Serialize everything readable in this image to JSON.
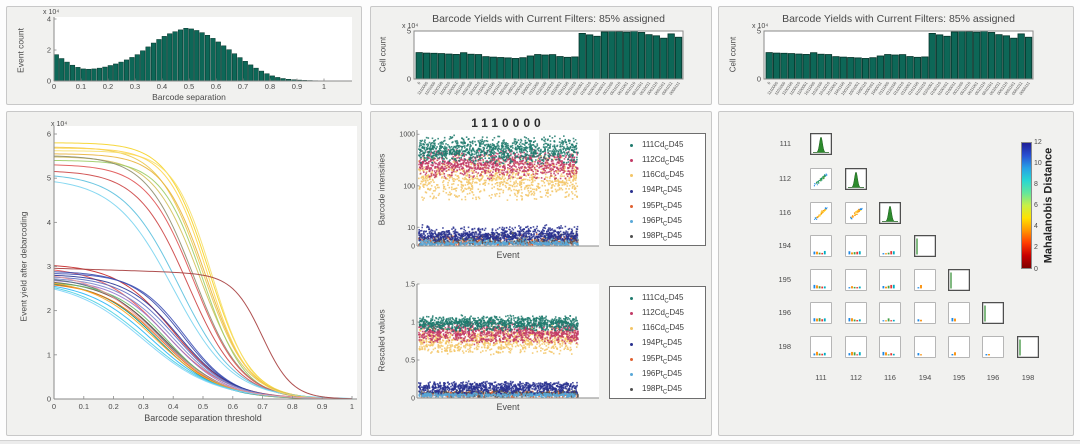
{
  "chart_data": {
    "separation_histogram": {
      "type": "histogram",
      "ylabel": "Event count",
      "xlabel": "Barcode separation",
      "exponent": "x 10⁴",
      "bar_color": "#0d6757",
      "bar_edge": "#05342a",
      "bin_width": 0.02,
      "x_start": 0,
      "xticks": [
        "0",
        "0.1",
        "0.2",
        "0.3",
        "0.4",
        "0.5",
        "0.6",
        "0.7",
        "0.8",
        "0.9",
        "1"
      ],
      "yticks": [
        0,
        2,
        4
      ],
      "ylim": [
        0,
        4
      ],
      "values": [
        1.7,
        1.45,
        1.22,
        1.02,
        0.88,
        0.78,
        0.76,
        0.78,
        0.83,
        0.9,
        1.0,
        1.1,
        1.22,
        1.36,
        1.52,
        1.7,
        1.95,
        2.2,
        2.45,
        2.68,
        2.88,
        3.05,
        3.18,
        3.3,
        3.4,
        3.36,
        3.26,
        3.12,
        2.95,
        2.75,
        2.52,
        2.27,
        2.02,
        1.76,
        1.51,
        1.27,
        1.04,
        0.83,
        0.64,
        0.47,
        0.33,
        0.23,
        0.16,
        0.11,
        0.08,
        0.06,
        0.04,
        0.03,
        0.02,
        0.015,
        0.01,
        0.008,
        0.006
      ]
    },
    "yield_curves": {
      "type": "line",
      "ylabel": "Event yield after debarcoding",
      "xlabel": "Barcode separation threshold",
      "exponent": "x 10⁴",
      "xticks": [
        "0",
        "0.1",
        "0.2",
        "0.3",
        "0.4",
        "0.5",
        "0.6",
        "0.7",
        "0.8",
        "0.9",
        "1"
      ],
      "yticks": [
        0,
        1,
        2,
        3,
        4,
        5,
        6
      ],
      "ylim": [
        0,
        6
      ],
      "curves": [
        {
          "color": "#f5d327",
          "start": 5.8,
          "mid": 0.52,
          "steep": 0.07
        },
        {
          "color": "#ecc94b",
          "start": 5.7,
          "mid": 0.5,
          "steep": 0.075
        },
        {
          "color": "#f7e06e",
          "start": 5.62,
          "mid": 0.53,
          "steep": 0.065
        },
        {
          "color": "#e8b33c",
          "start": 5.55,
          "mid": 0.51,
          "steep": 0.072
        },
        {
          "color": "#d4c05a",
          "start": 5.48,
          "mid": 0.49,
          "steep": 0.078
        },
        {
          "color": "#9ccc65",
          "start": 5.4,
          "mid": 0.5,
          "steep": 0.07
        },
        {
          "color": "#8d8d6e",
          "start": 5.5,
          "mid": 0.47,
          "steep": 0.08
        },
        {
          "color": "#e05252",
          "start": 5.3,
          "mid": 0.47,
          "steep": 0.08
        },
        {
          "color": "#cc4444",
          "start": 5.15,
          "mid": 0.45,
          "steep": 0.085
        },
        {
          "color": "#5bc0de",
          "start": 5.05,
          "mid": 0.42,
          "steep": 0.095
        },
        {
          "color": "#7ad4f0",
          "start": 4.92,
          "mid": 0.4,
          "steep": 0.1
        },
        {
          "color": "#ffd54f",
          "start": 5.68,
          "mid": 0.515,
          "steep": 0.068
        },
        {
          "color": "#c62828",
          "start": 3.02,
          "mid": 0.4,
          "steep": 0.095
        },
        {
          "color": "#ef5350",
          "start": 2.92,
          "mid": 0.37,
          "steep": 0.105
        },
        {
          "color": "#3949ab",
          "start": 2.88,
          "mid": 0.43,
          "steep": 0.085
        },
        {
          "color": "#3f51b5",
          "start": 2.84,
          "mid": 0.44,
          "steep": 0.082
        },
        {
          "color": "#283593",
          "start": 2.8,
          "mid": 0.42,
          "steep": 0.09
        },
        {
          "color": "#5c6bc0",
          "start": 2.76,
          "mid": 0.41,
          "steep": 0.092
        },
        {
          "color": "#7986cb",
          "start": 2.72,
          "mid": 0.4,
          "steep": 0.095
        },
        {
          "color": "#9575cd",
          "start": 2.68,
          "mid": 0.39,
          "steep": 0.095
        },
        {
          "color": "#546e7a",
          "start": 2.7,
          "mid": 0.36,
          "steep": 0.1
        },
        {
          "color": "#6d4c41",
          "start": 2.64,
          "mid": 0.37,
          "steep": 0.1
        },
        {
          "color": "#00897b",
          "start": 2.6,
          "mid": 0.35,
          "steep": 0.1
        },
        {
          "color": "#66bb6a",
          "start": 2.62,
          "mid": 0.38,
          "steep": 0.092
        },
        {
          "color": "#ef6c00",
          "start": 2.58,
          "mid": 0.36,
          "steep": 0.1
        },
        {
          "color": "#ffa726",
          "start": 2.62,
          "mid": 0.34,
          "steep": 0.108
        },
        {
          "color": "#29b6f6",
          "start": 2.55,
          "mid": 0.33,
          "steep": 0.11
        },
        {
          "color": "#4dd0e1",
          "start": 2.52,
          "mid": 0.31,
          "steep": 0.118
        },
        {
          "color": "#81d4fa",
          "start": 2.49,
          "mid": 0.3,
          "steep": 0.12
        },
        {
          "color": "#ef9a9a",
          "start": 2.78,
          "mid": 0.345,
          "steep": 0.108
        },
        {
          "color": "#a63d3d",
          "start": 2.96,
          "mid": 0.7,
          "steep": 0.05,
          "flat": true
        }
      ]
    },
    "barcode_yields": {
      "type": "bar",
      "title": "Barcode Yields with Current Filters: 85% assigned",
      "ylabel": "Cell count",
      "exponent": "x 10⁴",
      "yticks": [
        0,
        5
      ],
      "ylim": [
        0,
        5
      ],
      "bar_color": "#0d6757",
      "bar_edge": "#05342a",
      "categories": [
        "0",
        "1110000",
        "1101000",
        "1100100",
        "1100010",
        "1100001",
        "1011000",
        "1010100",
        "1010010",
        "1010001",
        "1001100",
        "1001010",
        "1001001",
        "1000110",
        "1000101",
        "1000011",
        "0111000",
        "0110100",
        "0110010",
        "0110001",
        "0101100",
        "0101010",
        "0101001",
        "0100110",
        "0100101",
        "0100011",
        "0011100",
        "0011010",
        "0011001",
        "0010110",
        "0010101",
        "0010011",
        "0001110",
        "0001101",
        "0001011",
        "0000111"
      ],
      "values": [
        2.75,
        2.7,
        2.68,
        2.65,
        2.6,
        2.56,
        2.74,
        2.58,
        2.55,
        2.33,
        2.28,
        2.24,
        2.2,
        2.14,
        2.22,
        2.4,
        2.55,
        2.5,
        2.54,
        2.34,
        2.26,
        2.3,
        4.75,
        4.6,
        4.45,
        4.9,
        5.0,
        4.95,
        4.88,
        5.0,
        4.85,
        4.62,
        4.5,
        4.25,
        4.7,
        4.35
      ]
    },
    "cd45_series": [
      {
        "label": "111Cd_CD45",
        "pre": "111Cd",
        "sub": "C",
        "post": "D45",
        "color": "#1f7a6d",
        "intensity_band": [
          260,
          950
        ],
        "rescaled_band": [
          0.87,
          1.09
        ],
        "n": 1000
      },
      {
        "label": "112Cd_CD45",
        "pre": "112Cd",
        "sub": "C",
        "post": "D45",
        "color": "#c23a66",
        "intensity_band": [
          130,
          520
        ],
        "rescaled_band": [
          0.7,
          1.01
        ],
        "n": 900
      },
      {
        "label": "116Cd_CD45",
        "pre": "116Cd",
        "sub": "C",
        "post": "D45",
        "color": "#f3c566",
        "intensity_band": [
          45,
          430
        ],
        "rescaled_band": [
          0.55,
          0.96
        ],
        "n": 900
      },
      {
        "label": "194Pt_CD45",
        "pre": "194Pt",
        "sub": "C",
        "post": "D45",
        "color": "#28308f",
        "intensity_band": [
          1.8,
          12
        ],
        "rescaled_band": [
          0.05,
          0.22
        ],
        "n": 800
      },
      {
        "label": "195Pt_CD45",
        "pre": "195Pt",
        "sub": "C",
        "post": "D45",
        "color": "#e06030",
        "intensity_band": [
          0.3,
          6
        ],
        "rescaled_band": [
          0.005,
          0.09
        ],
        "n": 500
      },
      {
        "label": "196Pt_CD45",
        "pre": "196Pt",
        "sub": "C",
        "post": "D45",
        "color": "#58a8d8",
        "intensity_band": [
          0.2,
          4
        ],
        "rescaled_band": [
          0.005,
          0.07
        ],
        "n": 450
      },
      {
        "label": "198Pt_CD45",
        "pre": "198Pt",
        "sub": "C",
        "post": "D45",
        "color": "#4f4f4f",
        "intensity_band": [
          0.5,
          8
        ],
        "rescaled_band": [
          0.005,
          0.11
        ],
        "n": 350
      }
    ],
    "barcode_intensities": {
      "type": "scatter",
      "title": "1110000",
      "ylabel": "Barcode intensities",
      "xlabel": "Event",
      "yticks": [
        "0",
        "10",
        "100",
        "1000"
      ],
      "scale": "log-compressed"
    },
    "rescaled_values": {
      "type": "scatter",
      "ylabel": "Rescaled values",
      "xlabel": "Event",
      "yticks": [
        "0",
        "0.5",
        "1",
        "1.5"
      ],
      "ylim": [
        0,
        1.5
      ]
    },
    "mahalanobis_matrix": {
      "type": "matrix",
      "labels": [
        "111",
        "112",
        "116",
        "194",
        "195",
        "196",
        "198"
      ],
      "diag_hist_color": "#2d8a2d",
      "diag_hist_edge": "#1a5c1a",
      "palettes": {
        "diag1": [
          "#00897b",
          "#43a047",
          "#1e88e5",
          "#2e7d32"
        ],
        "diag2": [
          "#fb8c00",
          "#fdd835",
          "#1e88e5",
          "#ef5350"
        ],
        "mini": [
          "#1e88e5",
          "#fb8c00",
          "#43a047",
          "#e53935",
          "#00acc1"
        ]
      },
      "colorbar": {
        "label": "Mahalanobis Distance",
        "ticks": [
          0,
          2,
          4,
          6,
          8,
          10,
          12
        ],
        "stops": [
          "#7f0000",
          "#c80000",
          "#ff3c00",
          "#ff9600",
          "#ffe100",
          "#c8f046",
          "#64e69b",
          "#28d7d2",
          "#28a0e6",
          "#2850d2",
          "#1e1e96"
        ]
      }
    }
  }
}
